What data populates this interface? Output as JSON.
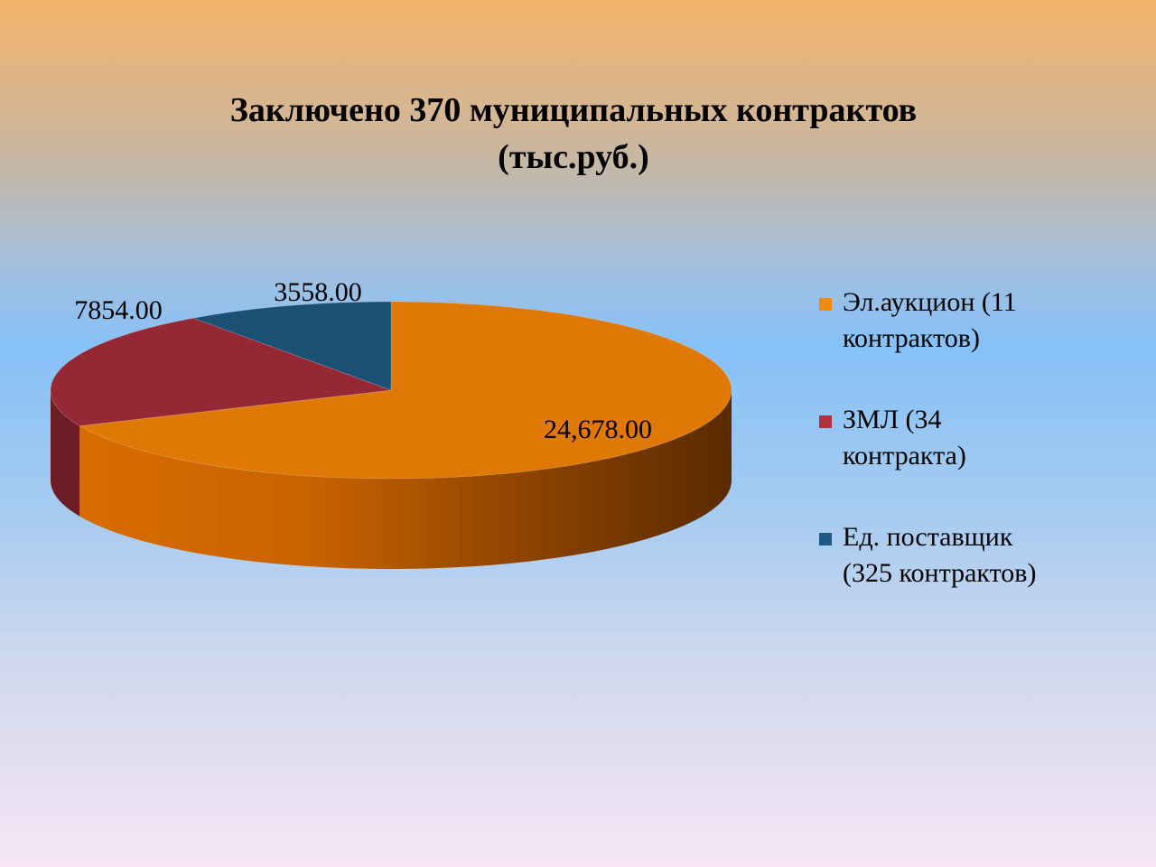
{
  "chart_data": {
    "type": "pie",
    "title": [
      "Заключено 370 муниципальных контрактов",
      "(тыс.руб.)"
    ],
    "categories": [
      "Эл.аукцион (11 контрактов)",
      "ЗМЛ (34 контракта)",
      "Ед. поставщик (325 контрактов)"
    ],
    "values": [
      24678,
      7854,
      3558
    ],
    "data_labels": [
      "24,678.00",
      "7854.00",
      "3558.00"
    ],
    "colors": [
      "#e07805",
      "#952835",
      "#1b5075"
    ],
    "legend_position": "right",
    "style": "3d"
  },
  "legend": [
    {
      "line1": "Эл.аукцион (11",
      "line2": "контрактов)",
      "color": "#f28a12"
    },
    {
      "line1": "ЗМЛ (34",
      "line2": "контракта)",
      "color": "#b0323f"
    },
    {
      "line1": "Ед. поставщик",
      "line2": "(325 контрактов)",
      "color": "#1f5a85"
    }
  ]
}
